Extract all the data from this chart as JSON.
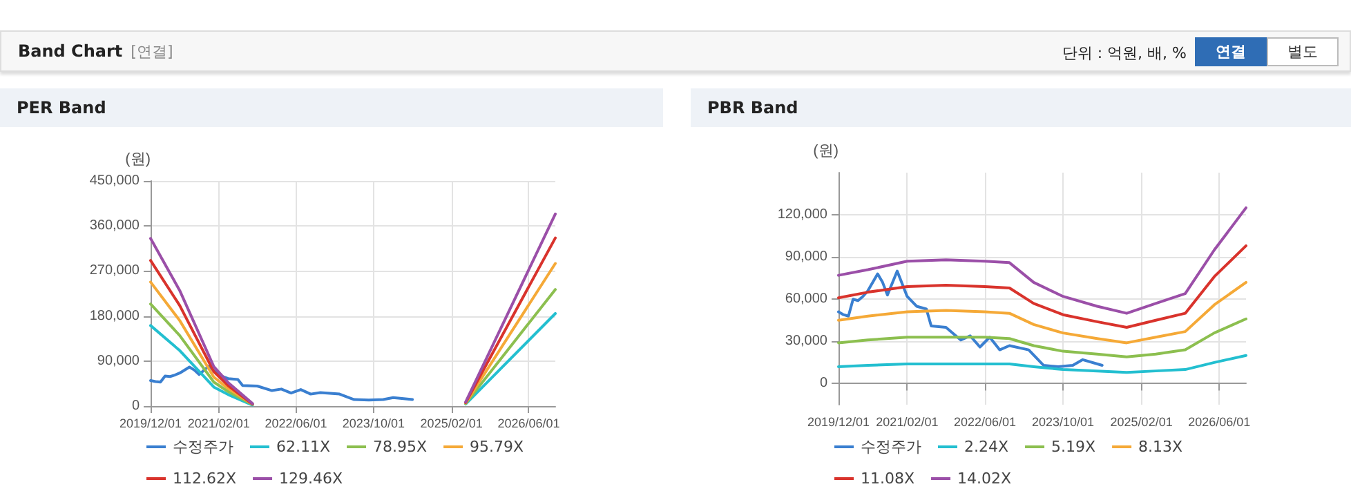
{
  "chart_data": [
    {
      "type": "other",
      "title": "Band Chart",
      "subtitle": "[연결]",
      "annotations": [
        "단위 : 억원, 배, %",
        "연결",
        "별도"
      ]
    },
    {
      "type": "line",
      "title": "PER Band",
      "ylabel": "(원)",
      "xlim": [
        "2019-12-01",
        "2026-11-15"
      ],
      "xticks": [
        {
          "value": "2019-12-01",
          "label": "2019/12/01"
        },
        {
          "value": "2021-02-01",
          "label": "2021/02/01"
        },
        {
          "value": "2022-06-01",
          "label": "2022/06/01"
        },
        {
          "value": "2023-10-01",
          "label": "2023/10/01"
        },
        {
          "value": "2025-02-01",
          "label": "2025/02/01"
        },
        {
          "value": "2026-06-01",
          "label": "2026/06/01"
        }
      ],
      "ylim": [
        0,
        450000
      ],
      "yticks": [
        {
          "value": 0,
          "label": "0"
        },
        {
          "value": 90000,
          "label": "90,000"
        },
        {
          "value": 180000,
          "label": "180,000"
        },
        {
          "value": 270000,
          "label": "270,000"
        },
        {
          "value": 360000,
          "label": "360,000"
        },
        {
          "value": 450000,
          "label": "450,000"
        }
      ],
      "grid": true,
      "legend": "bottom",
      "marker": "none",
      "line_style": "solid",
      "series": [
        {
          "name": "수정주가",
          "color": "#3a7fd0",
          "x": [
            "2019-12-01",
            "2020-01",
            "2020-02",
            "2020-03",
            "2020-04",
            "2020-05",
            "2020-06",
            "2020-08",
            "2020-09",
            "2020-10",
            "2020-12",
            "2021-02",
            "2021-04",
            "2021-06",
            "2021-07",
            "2021-10",
            "2022-01",
            "2022-03",
            "2022-05",
            "2022-07",
            "2022-09",
            "2022-11",
            "2023-03",
            "2023-06",
            "2023-09",
            "2023-12",
            "2024-02",
            "2024-06"
          ],
          "values": [
            51000,
            49000,
            48000,
            60000,
            59000,
            62000,
            66000,
            78000,
            72000,
            63000,
            80000,
            62000,
            55000,
            53000,
            41000,
            40000,
            31000,
            34000,
            26000,
            33000,
            24000,
            27000,
            24000,
            13000,
            12000,
            13000,
            17000,
            13000
          ]
        },
        {
          "name": "62.11X",
          "color": "#23bfd0",
          "x": [
            "2019-12-01",
            "2020-06",
            "2021-01",
            "2021-04",
            "2021-09",
            "2023-06",
            "2025-05",
            "2026-11-15"
          ],
          "values": [
            161000,
            111000,
            38000,
            23000,
            2000,
            null,
            4000,
            185000
          ]
        },
        {
          "name": "78.95X",
          "color": "#8cbf4f",
          "x": [
            "2019-12-01",
            "2020-06",
            "2021-01",
            "2021-04",
            "2021-09",
            "2023-06",
            "2025-05",
            "2026-11-15"
          ],
          "values": [
            204000,
            141000,
            48000,
            29000,
            3000,
            null,
            5000,
            233000
          ]
        },
        {
          "name": "95.79X",
          "color": "#f5a937",
          "x": [
            "2019-12-01",
            "2020-06",
            "2021-01",
            "2021-04",
            "2021-09",
            "2023-06",
            "2025-05",
            "2026-11-15"
          ],
          "values": [
            248000,
            171000,
            58000,
            35000,
            4000,
            null,
            6000,
            285000
          ]
        },
        {
          "name": "112.62X",
          "color": "#d9332c",
          "x": [
            "2019-12-01",
            "2020-06",
            "2021-01",
            "2021-04",
            "2021-09",
            "2023-06",
            "2025-05",
            "2026-11-15"
          ],
          "values": [
            291000,
            201000,
            69000,
            41000,
            4000,
            null,
            7000,
            336000
          ]
        },
        {
          "name": "129.46X",
          "color": "#9b4fa8",
          "x": [
            "2019-12-01",
            "2020-06",
            "2021-01",
            "2021-04",
            "2021-09",
            "2023-06",
            "2025-05",
            "2026-11-15"
          ],
          "values": [
            335000,
            231000,
            79000,
            47000,
            5000,
            null,
            8000,
            384000
          ]
        }
      ]
    },
    {
      "type": "line",
      "title": "PBR Band",
      "ylabel": "(원)",
      "xlim": [
        "2019-12-01",
        "2026-11-15"
      ],
      "xticks": [
        {
          "value": "2019-12-01",
          "label": "2019/12/01"
        },
        {
          "value": "2021-02-01",
          "label": "2021/02/01"
        },
        {
          "value": "2022-06-01",
          "label": "2022/06/01"
        },
        {
          "value": "2023-10-01",
          "label": "2023/10/01"
        },
        {
          "value": "2025-02-01",
          "label": "2025/02/01"
        },
        {
          "value": "2026-06-01",
          "label": "2026/06/01"
        }
      ],
      "ylim": [
        -15000,
        150000
      ],
      "yticks": [
        {
          "value": 0,
          "label": "0"
        },
        {
          "value": 30000,
          "label": "30,000"
        },
        {
          "value": 60000,
          "label": "60,000"
        },
        {
          "value": 90000,
          "label": "90,000"
        },
        {
          "value": 120000,
          "label": "120,000"
        }
      ],
      "grid": true,
      "legend": "bottom",
      "marker": "none",
      "line_style": "solid",
      "series": [
        {
          "name": "수정주가",
          "color": "#3a7fd0",
          "x": [
            "2019-12-01",
            "2020-01",
            "2020-02",
            "2020-03",
            "2020-04",
            "2020-05",
            "2020-06",
            "2020-08",
            "2020-09",
            "2020-10",
            "2020-12",
            "2021-02",
            "2021-04",
            "2021-06",
            "2021-07",
            "2021-10",
            "2022-01",
            "2022-03",
            "2022-05",
            "2022-07",
            "2022-09",
            "2022-11",
            "2023-03",
            "2023-06",
            "2023-09",
            "2023-12",
            "2024-02",
            "2024-06"
          ],
          "values": [
            51000,
            49000,
            48000,
            60000,
            59000,
            62000,
            66000,
            78000,
            72000,
            63000,
            80000,
            62000,
            55000,
            53000,
            41000,
            40000,
            31000,
            34000,
            26000,
            33000,
            24000,
            27000,
            24000,
            13000,
            12000,
            13000,
            17000,
            13000
          ]
        },
        {
          "name": "2.24X",
          "color": "#23bfd0",
          "x": [
            "2019-12-01",
            "2020-06",
            "2021-02",
            "2021-10",
            "2022-06",
            "2022-11",
            "2023-04",
            "2023-10",
            "2024-05",
            "2024-11",
            "2025-05",
            "2025-11",
            "2026-05",
            "2026-11-15"
          ],
          "values": [
            12000,
            13000,
            14000,
            14000,
            14000,
            14000,
            12000,
            10000,
            9000,
            8000,
            9000,
            10000,
            15000,
            20000
          ]
        },
        {
          "name": "5.19X",
          "color": "#8cbf4f",
          "x": [
            "2019-12-01",
            "2020-06",
            "2021-02",
            "2021-10",
            "2022-06",
            "2022-11",
            "2023-04",
            "2023-10",
            "2024-05",
            "2024-11",
            "2025-05",
            "2025-11",
            "2026-05",
            "2026-11-15"
          ],
          "values": [
            29000,
            31000,
            33000,
            33000,
            33000,
            32000,
            27000,
            23000,
            21000,
            19000,
            21000,
            24000,
            36000,
            46000
          ]
        },
        {
          "name": "8.13X",
          "color": "#f5a937",
          "x": [
            "2019-12-01",
            "2020-06",
            "2021-02",
            "2021-10",
            "2022-06",
            "2022-11",
            "2023-04",
            "2023-10",
            "2024-05",
            "2024-11",
            "2025-05",
            "2025-11",
            "2026-05",
            "2026-11-15"
          ],
          "values": [
            45000,
            48000,
            51000,
            52000,
            51000,
            50000,
            42000,
            36000,
            32000,
            29000,
            33000,
            37000,
            56000,
            72000
          ]
        },
        {
          "name": "11.08X",
          "color": "#d9332c",
          "x": [
            "2019-12-01",
            "2020-06",
            "2021-02",
            "2021-10",
            "2022-06",
            "2022-11",
            "2023-04",
            "2023-10",
            "2024-05",
            "2024-11",
            "2025-05",
            "2025-11",
            "2026-05",
            "2026-11-15"
          ],
          "values": [
            61000,
            65000,
            69000,
            70000,
            69000,
            68000,
            57000,
            49000,
            44000,
            40000,
            45000,
            50000,
            76000,
            98000
          ]
        },
        {
          "name": "14.02X",
          "color": "#9b4fa8",
          "x": [
            "2019-12-01",
            "2020-06",
            "2021-02",
            "2021-10",
            "2022-06",
            "2022-11",
            "2023-04",
            "2023-10",
            "2024-05",
            "2024-11",
            "2025-05",
            "2025-11",
            "2026-05",
            "2026-11-15"
          ],
          "values": [
            77000,
            81000,
            87000,
            88000,
            87000,
            86000,
            72000,
            62000,
            55000,
            50000,
            57000,
            64000,
            95000,
            125000
          ]
        }
      ]
    }
  ]
}
